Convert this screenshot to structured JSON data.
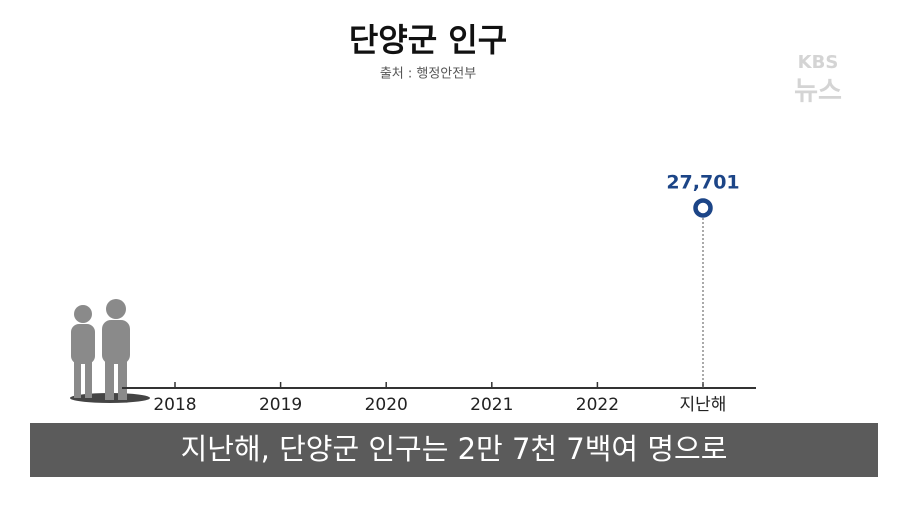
{
  "chart_data": {
    "type": "line",
    "title": "단양군 인구",
    "subtitle": "출처 : 행정안전부",
    "categories": [
      "2018",
      "2019",
      "2020",
      "2021",
      "2022",
      "지난해"
    ],
    "series": [
      {
        "color": "#1c4587",
        "values": [
          null,
          null,
          null,
          null,
          null,
          27701
        ],
        "value_labels": [
          null,
          null,
          null,
          null,
          null,
          "27,701"
        ]
      }
    ],
    "ylim": [
      0,
      30000
    ]
  },
  "brand": {
    "name": "KBS",
    "sub": "뉴스"
  },
  "caption": "지난해, 단양군 인구는 2만 7천 7백여 명으로"
}
